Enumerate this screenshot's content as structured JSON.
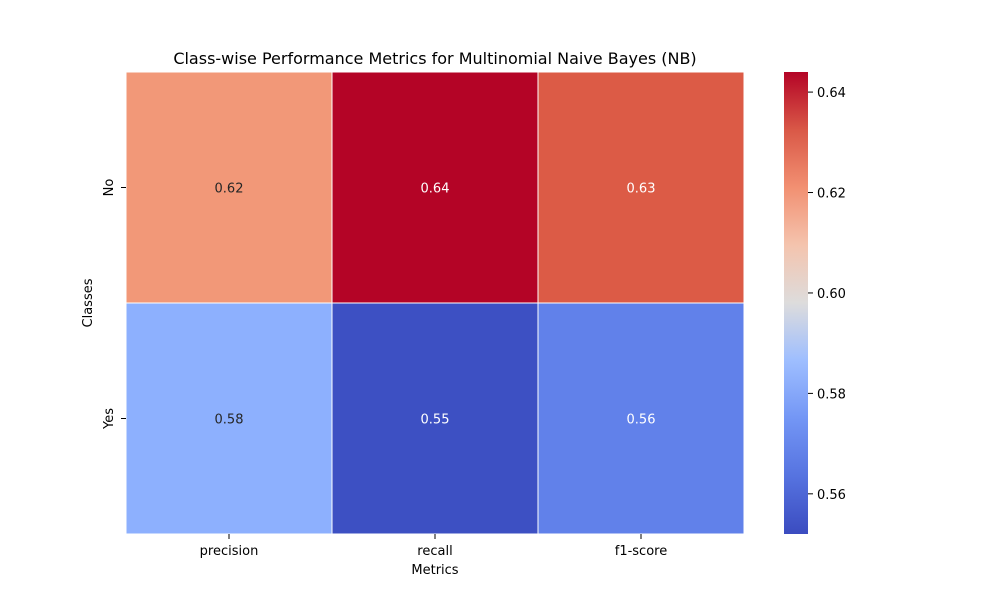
{
  "chart_data": {
    "type": "heatmap",
    "title": "Class-wise Performance Metrics for Multinomial Naive Bayes (NB)",
    "xlabel": "Metrics",
    "ylabel": "Classes",
    "x_categories": [
      "precision",
      "recall",
      "f1-score"
    ],
    "y_categories": [
      "No",
      "Yes"
    ],
    "values": [
      [
        0.62,
        0.64,
        0.63
      ],
      [
        0.58,
        0.55,
        0.56
      ]
    ],
    "value_labels": [
      [
        "0.62",
        "0.64",
        "0.63"
      ],
      [
        "0.58",
        "0.55",
        "0.56"
      ]
    ],
    "colormap": "coolwarm",
    "color_range": [
      0.552,
      0.644
    ],
    "colorbar_ticks": [
      "0.56",
      "0.58",
      "0.60",
      "0.62",
      "0.64"
    ],
    "cell_colors": [
      [
        "#f29878",
        "#b40426",
        "#dc5b46"
      ],
      [
        "#8db0fe",
        "#3d50c3",
        "#6181ea"
      ]
    ],
    "grid": false,
    "legend": "colorbar-right"
  }
}
